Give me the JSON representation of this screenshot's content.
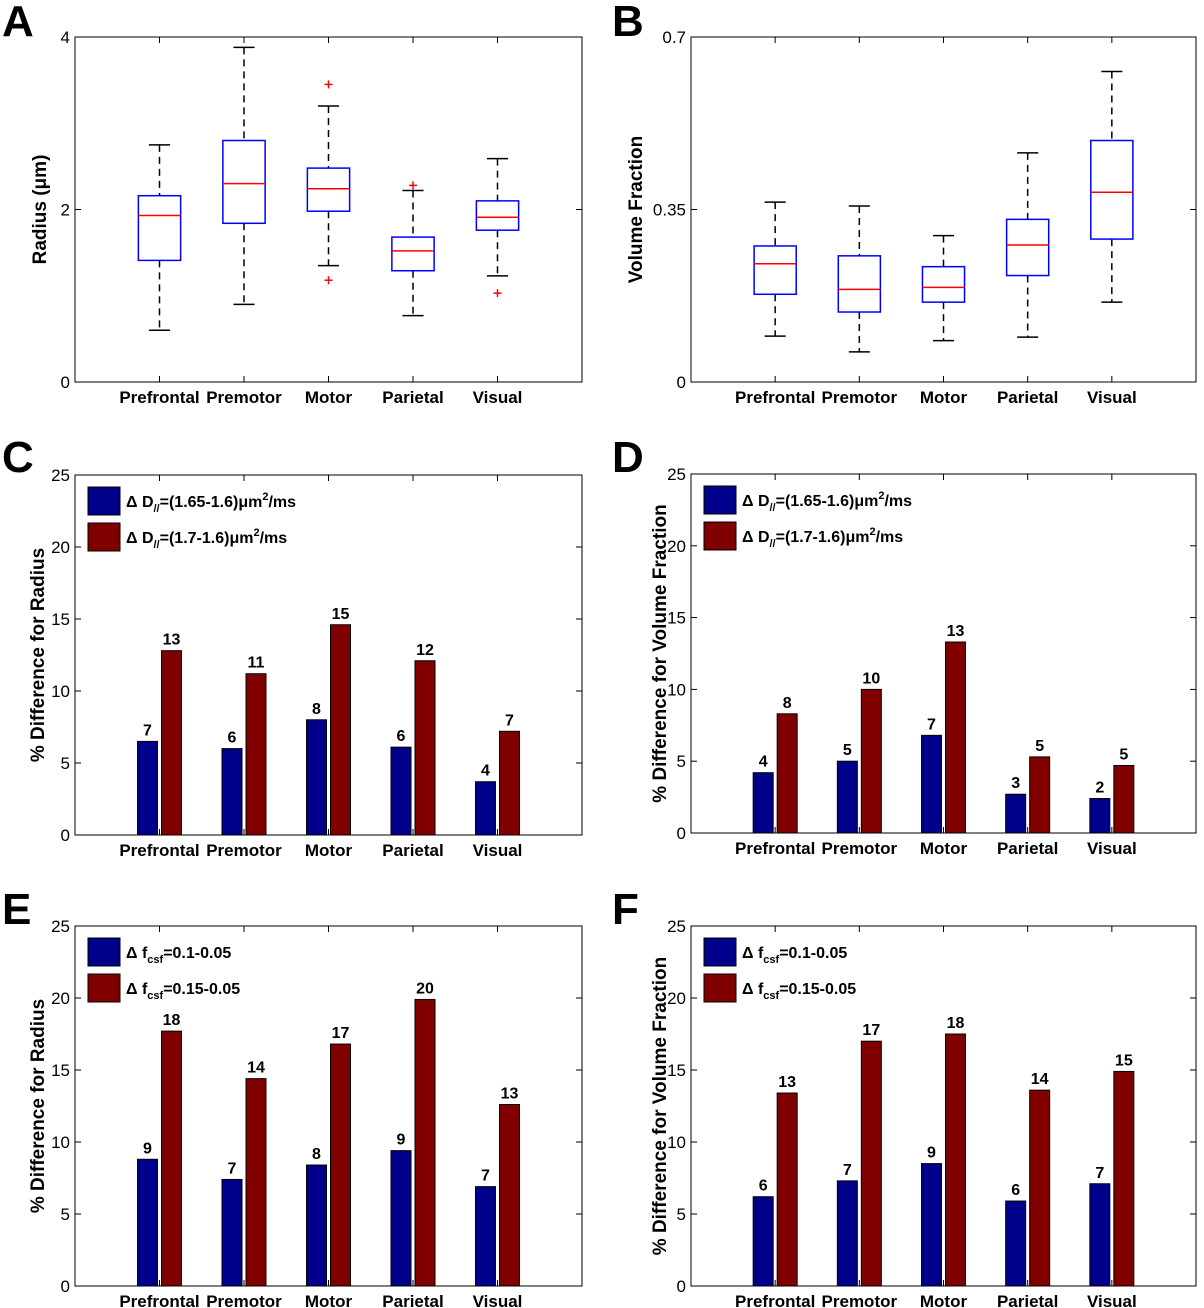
{
  "chart_data": [
    {
      "panel": "A",
      "type": "box",
      "categories": [
        "Prefrontal",
        "Premotor",
        "Motor",
        "Parietal",
        "Visual"
      ],
      "ylabel": "Radius (μm)",
      "ylim": [
        0,
        4
      ],
      "yticks": [
        "0",
        "2",
        "4"
      ],
      "boxes": [
        {
          "whisker_low": 0.6,
          "q1": 1.41,
          "median": 1.93,
          "q3": 2.16,
          "whisker_high": 2.75,
          "outliers": []
        },
        {
          "whisker_low": 0.9,
          "q1": 1.84,
          "median": 2.3,
          "q3": 2.8,
          "whisker_high": 3.88,
          "outliers": []
        },
        {
          "whisker_low": 1.35,
          "q1": 1.98,
          "median": 2.24,
          "q3": 2.48,
          "whisker_high": 3.2,
          "outliers": [
            3.45,
            1.18
          ]
        },
        {
          "whisker_low": 0.77,
          "q1": 1.29,
          "median": 1.52,
          "q3": 1.68,
          "whisker_high": 2.22,
          "outliers": [
            2.28
          ]
        },
        {
          "whisker_low": 1.23,
          "q1": 1.76,
          "median": 1.91,
          "q3": 2.1,
          "whisker_high": 2.59,
          "outliers": [
            1.03
          ]
        }
      ]
    },
    {
      "panel": "B",
      "type": "box",
      "categories": [
        "Prefrontal",
        "Premotor",
        "Motor",
        "Parietal",
        "Visual"
      ],
      "ylabel": "Volume Fraction",
      "ylim": [
        0,
        0.7
      ],
      "yticks": [
        "0",
        "0.35",
        "0.7"
      ],
      "boxes": [
        {
          "whisker_low": 0.093,
          "q1": 0.178,
          "median": 0.24,
          "q3": 0.276,
          "whisker_high": 0.365,
          "outliers": []
        },
        {
          "whisker_low": 0.061,
          "q1": 0.142,
          "median": 0.188,
          "q3": 0.256,
          "whisker_high": 0.357,
          "outliers": []
        },
        {
          "whisker_low": 0.084,
          "q1": 0.162,
          "median": 0.192,
          "q3": 0.234,
          "whisker_high": 0.297,
          "outliers": []
        },
        {
          "whisker_low": 0.091,
          "q1": 0.216,
          "median": 0.278,
          "q3": 0.33,
          "whisker_high": 0.465,
          "outliers": []
        },
        {
          "whisker_low": 0.162,
          "q1": 0.29,
          "median": 0.385,
          "q3": 0.49,
          "whisker_high": 0.63,
          "outliers": []
        }
      ]
    },
    {
      "panel": "C",
      "type": "bar",
      "categories": [
        "Prefrontal",
        "Premotor",
        "Motor",
        "Parietal",
        "Visual"
      ],
      "ylabel": "% Difference for Radius",
      "ylim": [
        0,
        25
      ],
      "yticks": [
        "0",
        "5",
        "10",
        "15",
        "20",
        "25"
      ],
      "legend_position": "top-left",
      "series": [
        {
          "name": "Δ D//=(1.65-1.6)μm2/ms",
          "legend": {
            "pre": "Δ D",
            "sub": "//",
            "mid": "=(1.65-1.6)μm",
            "sup": "2",
            "post": "/ms"
          },
          "values": [
            6.5,
            6.0,
            8.0,
            6.1,
            3.7
          ],
          "labels": [
            "7",
            "6",
            "8",
            "6",
            "4"
          ]
        },
        {
          "name": "Δ D//=(1.7-1.6)μm2/ms",
          "legend": {
            "pre": "Δ D",
            "sub": "//",
            "mid": "=(1.7-1.6)μm",
            "sup": "2",
            "post": "/ms"
          },
          "values": [
            12.8,
            11.2,
            14.6,
            12.1,
            7.2
          ],
          "labels": [
            "13",
            "11",
            "15",
            "12",
            "7"
          ]
        }
      ]
    },
    {
      "panel": "D",
      "type": "bar",
      "categories": [
        "Prefrontal",
        "Premotor",
        "Motor",
        "Parietal",
        "Visual"
      ],
      "ylabel": "% Difference for Volume Fraction",
      "ylim": [
        0,
        25
      ],
      "yticks": [
        "0",
        "5",
        "10",
        "15",
        "20",
        "25"
      ],
      "legend_position": "top-left",
      "series": [
        {
          "name": "Δ D//=(1.65-1.6)μm2/ms",
          "legend": {
            "pre": "Δ D",
            "sub": "//",
            "mid": "=(1.65-1.6)μm",
            "sup": "2",
            "post": "/ms"
          },
          "values": [
            4.2,
            5.0,
            6.8,
            2.7,
            2.4
          ],
          "labels": [
            "4",
            "5",
            "7",
            "3",
            "2"
          ]
        },
        {
          "name": "Δ D//=(1.7-1.6)μm2/ms",
          "legend": {
            "pre": "Δ D",
            "sub": "//",
            "mid": "=(1.7-1.6)μm",
            "sup": "2",
            "post": "/ms"
          },
          "values": [
            8.3,
            10.0,
            13.3,
            5.3,
            4.7
          ],
          "labels": [
            "8",
            "10",
            "13",
            "5",
            "5"
          ]
        }
      ]
    },
    {
      "panel": "E",
      "type": "bar",
      "categories": [
        "Prefrontal",
        "Premotor",
        "Motor",
        "Parietal",
        "Visual"
      ],
      "ylabel": "% Difference for Radius",
      "ylim": [
        0,
        25
      ],
      "yticks": [
        "0",
        "5",
        "10",
        "15",
        "20",
        "25"
      ],
      "legend_position": "top-left",
      "series": [
        {
          "name": "Δ fcsf=0.1-0.05",
          "legend": {
            "pre": "Δ f",
            "sub": "csf",
            "mid": "=0.1-0.05",
            "sup": "",
            "post": ""
          },
          "values": [
            8.8,
            7.4,
            8.4,
            9.4,
            6.9
          ],
          "labels": [
            "9",
            "7",
            "8",
            "9",
            "7"
          ]
        },
        {
          "name": "Δ fcsf=0.15-0.05",
          "legend": {
            "pre": "Δ f",
            "sub": "csf",
            "mid": "=0.15-0.05",
            "sup": "",
            "post": ""
          },
          "values": [
            17.7,
            14.4,
            16.8,
            19.9,
            12.6
          ],
          "labels": [
            "18",
            "14",
            "17",
            "20",
            "13"
          ]
        }
      ]
    },
    {
      "panel": "F",
      "type": "bar",
      "categories": [
        "Prefrontal",
        "Premotor",
        "Motor",
        "Parietal",
        "Visual"
      ],
      "ylabel": "% Difference for Volume Fraction",
      "ylim": [
        0,
        25
      ],
      "yticks": [
        "0",
        "5",
        "10",
        "15",
        "20",
        "25"
      ],
      "legend_position": "top-left",
      "series": [
        {
          "name": "Δ fcsf=0.1-0.05",
          "legend": {
            "pre": "Δ f",
            "sub": "csf",
            "mid": "=0.1-0.05",
            "sup": "",
            "post": ""
          },
          "values": [
            6.2,
            7.3,
            8.5,
            5.9,
            7.1
          ],
          "labels": [
            "6",
            "7",
            "9",
            "6",
            "7"
          ]
        },
        {
          "name": "Δ fcsf=0.15-0.05",
          "legend": {
            "pre": "Δ f",
            "sub": "csf",
            "mid": "=0.15-0.05",
            "sup": "",
            "post": ""
          },
          "values": [
            13.4,
            17.0,
            17.5,
            13.6,
            14.9
          ],
          "labels": [
            "13",
            "17",
            "18",
            "14",
            "15"
          ]
        }
      ]
    }
  ],
  "colors": {
    "box_outline": "#0000ff",
    "median_line": "#ff0000",
    "outlier_marker": "#ff0000",
    "whisker": "#000000",
    "series_1": "#00008b",
    "series_2": "#800000"
  }
}
